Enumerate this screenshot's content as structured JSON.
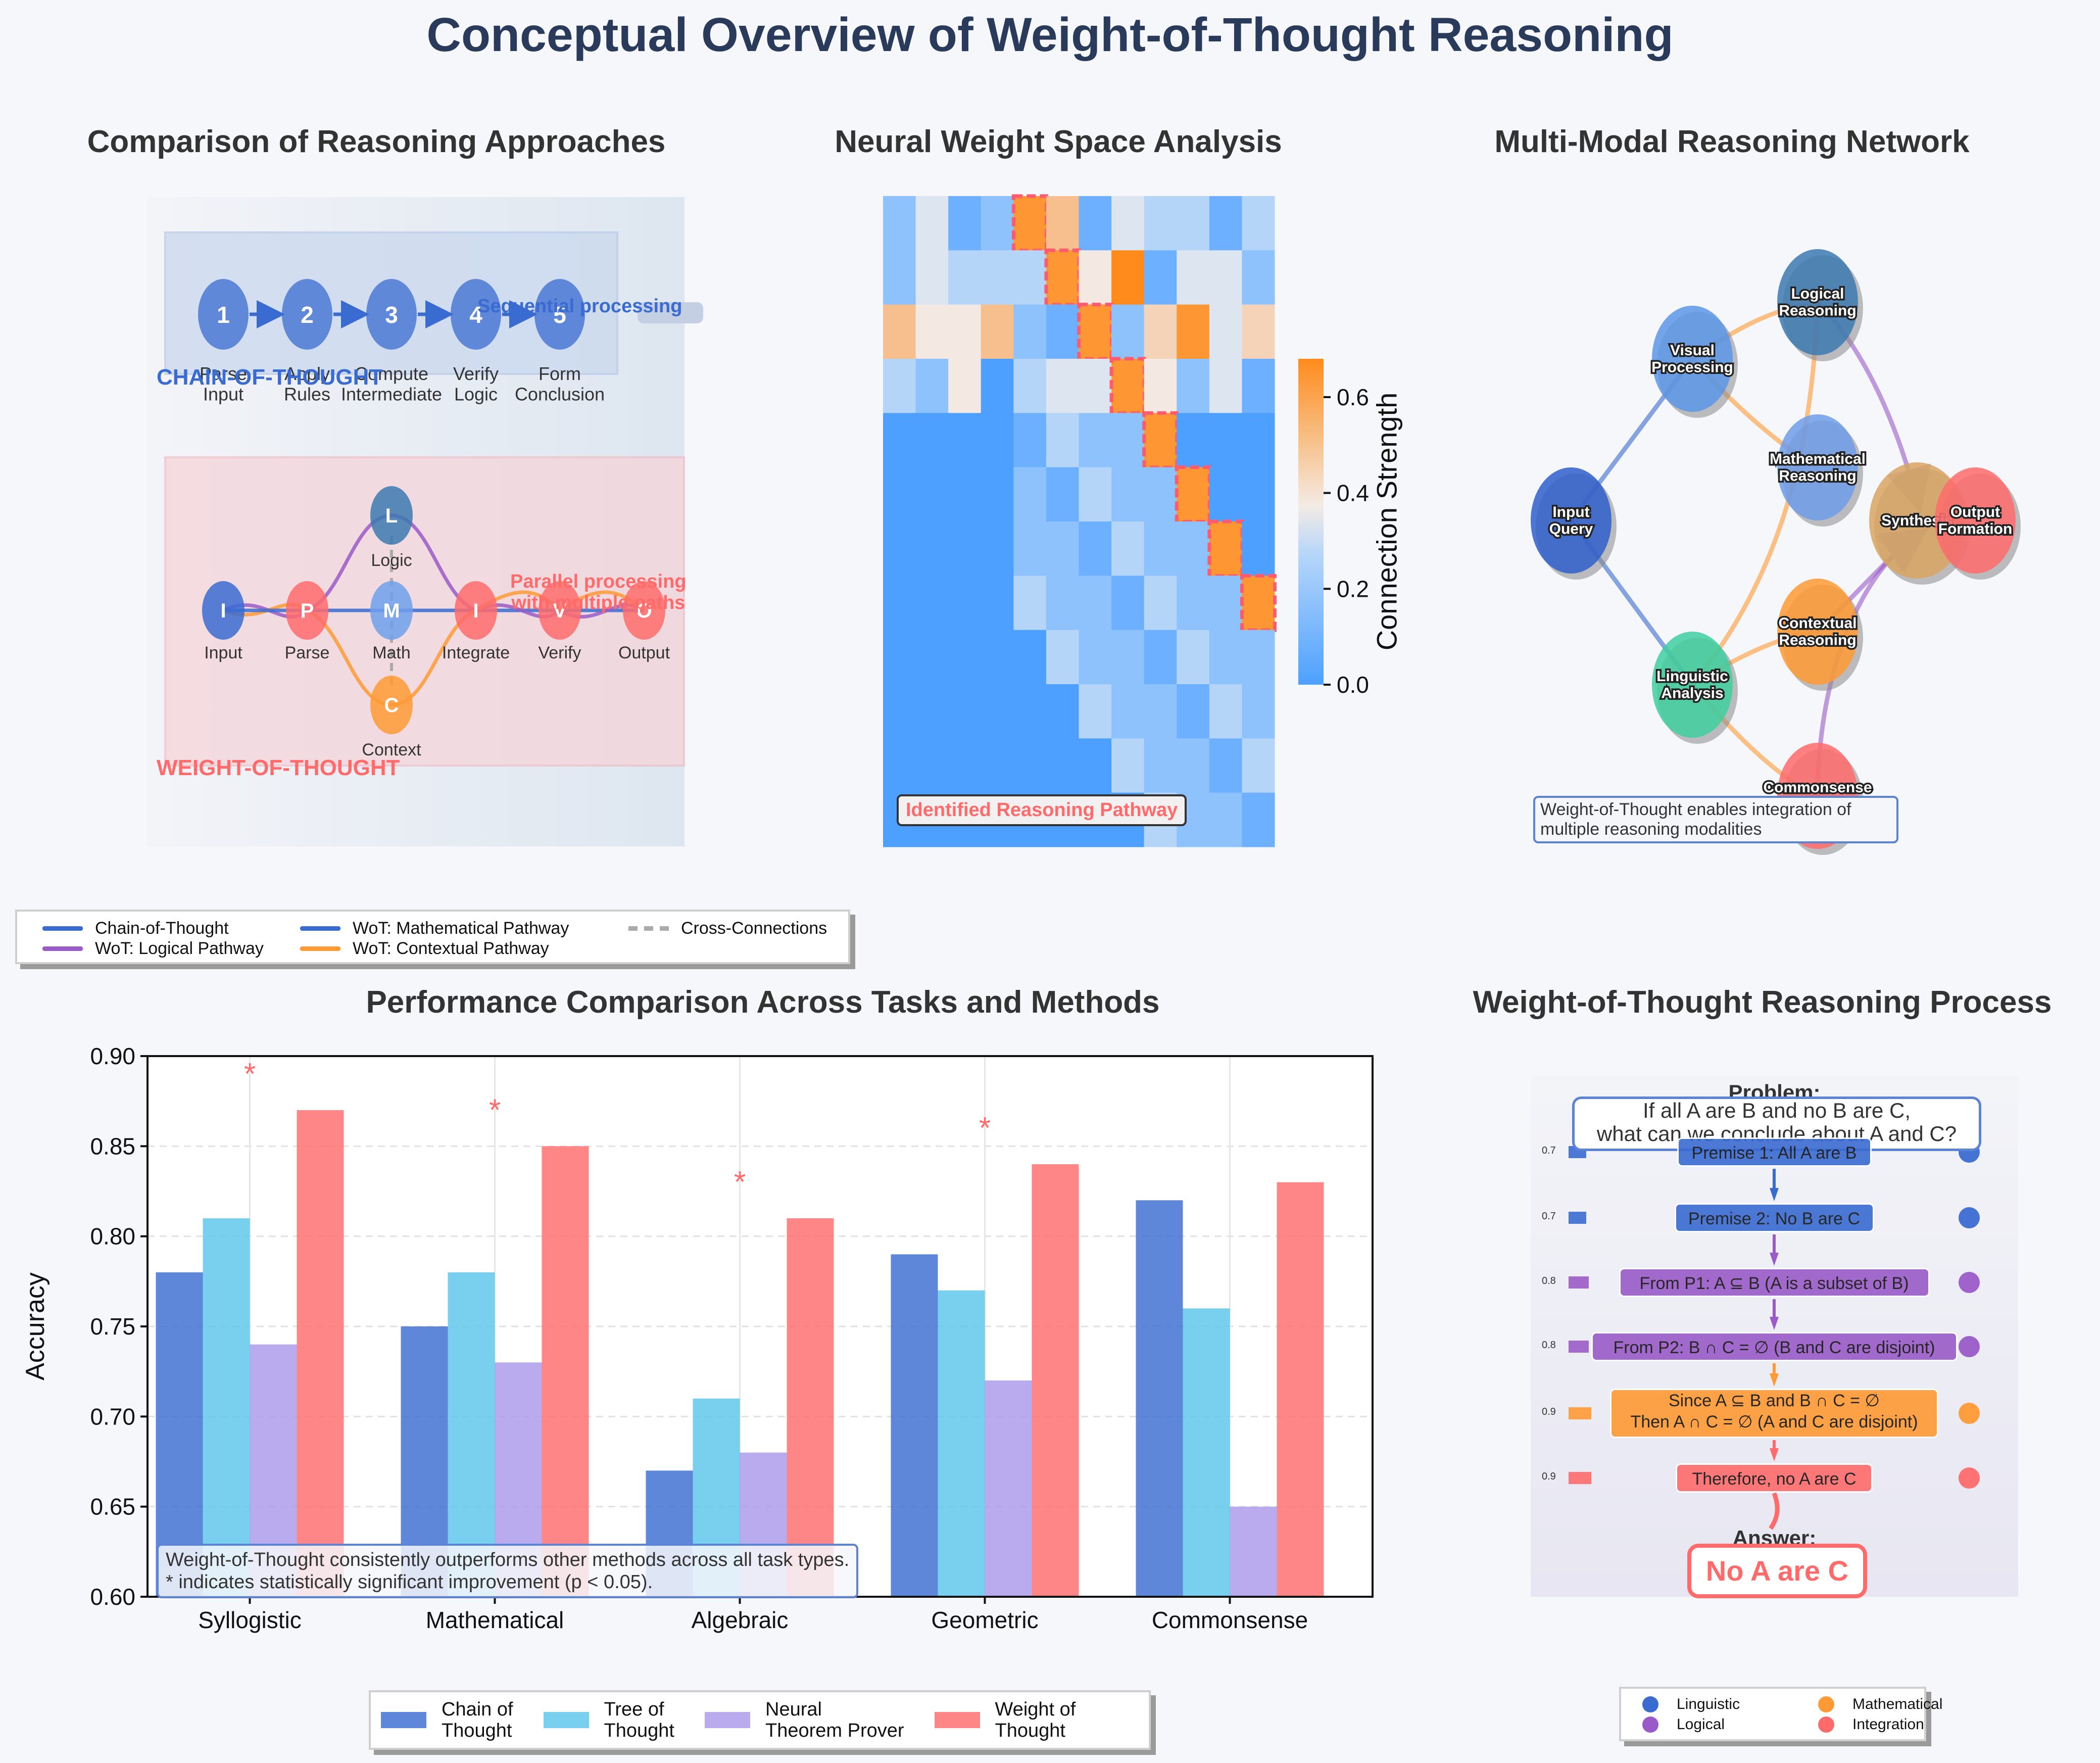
{
  "figure": {
    "title": "Conceptual Overview of Weight-of-Thought Reasoning",
    "colors": {
      "cot": "#3a6bd1",
      "tot": "#5bc4ea",
      "ntp": "#ab98ea",
      "wot": "#ff6b6b",
      "orange": "#ff9a35",
      "purple": "#9a5bc8",
      "bg": "#f5f7fa"
    }
  },
  "panel_a": {
    "title": "Comparison of Reasoning Approaches",
    "cot_label": "CHAIN-OF-THOUGHT",
    "cot_note": "Sequential processing",
    "cot_steps": [
      {
        "n": "1",
        "label": "Parse\nInput"
      },
      {
        "n": "2",
        "label": "Apply\nRules"
      },
      {
        "n": "3",
        "label": "Compute\nIntermediate"
      },
      {
        "n": "4",
        "label": "Verify\nLogic"
      },
      {
        "n": "5",
        "label": "Form\nConclusion"
      }
    ],
    "wot_label": "WEIGHT-OF-THOUGHT",
    "wot_note": "Parallel processing\nwith multiple paths",
    "wot_nodes": [
      {
        "id": "I",
        "label": "Input",
        "color": "#3a6bd1"
      },
      {
        "id": "P",
        "label": "Parse",
        "color": "#ff6b6b"
      },
      {
        "id": "L",
        "label": "Logic",
        "color": "#3c79b0"
      },
      {
        "id": "M",
        "label": "Math",
        "color": "#6ea0ea"
      },
      {
        "id": "C",
        "label": "Context",
        "color": "#ff9a35"
      },
      {
        "id": "I",
        "label": "Integrate",
        "color": "#ff6b6b"
      },
      {
        "id": "V",
        "label": "Verify",
        "color": "#ff6b6b"
      },
      {
        "id": "O",
        "label": "Output",
        "color": "#ff6b6b"
      }
    ],
    "legend": [
      {
        "label": "Chain-of-Thought",
        "color": "#3a6bd1",
        "style": "solid"
      },
      {
        "label": "WoT: Logical Pathway",
        "color": "#9a5bc8",
        "style": "solid"
      },
      {
        "label": "WoT: Mathematical Pathway",
        "color": "#3a6bd1",
        "style": "solid"
      },
      {
        "label": "WoT: Contextual Pathway",
        "color": "#ff9a35",
        "style": "solid"
      },
      {
        "label": "Cross-Connections",
        "color": "#aaaaaa",
        "style": "dashed"
      }
    ]
  },
  "panel_b": {
    "title": "Neural Weight Space Analysis",
    "annotation": "Identified Reasoning Pathway",
    "colorbar_label": "Connection Strength",
    "colorbar_ticks": [
      "0.0",
      "0.2",
      "0.4",
      "0.6"
    ],
    "vmax": 0.68
  },
  "panel_c": {
    "title": "Multi-Modal Reasoning Network",
    "nodes": [
      {
        "key": "input",
        "label": "Input\nQuery",
        "color": "#2f5fcc"
      },
      {
        "key": "visual",
        "label": "Visual\nProcessing",
        "color": "#5b96e6"
      },
      {
        "key": "logical",
        "label": "Logical\nReasoning",
        "color": "#3c79b0"
      },
      {
        "key": "math",
        "label": "Mathematical\nReasoning",
        "color": "#6e9ce8"
      },
      {
        "key": "ling",
        "label": "Linguistic\nAnalysis",
        "color": "#3fcf9f"
      },
      {
        "key": "context",
        "label": "Contextual\nReasoning",
        "color": "#ff9a35"
      },
      {
        "key": "common",
        "label": "Commonsense\nKnowledge",
        "color": "#ff6b6b"
      },
      {
        "key": "synth",
        "label": "Synthesis",
        "color": "#d8a560"
      },
      {
        "key": "output",
        "label": "Output\nFormation",
        "color": "#ff6b6b"
      }
    ],
    "note": "Weight-of-Thought enables integration of\nmultiple reasoning modalities"
  },
  "chart_data": {
    "type": "bar",
    "title": "Performance Comparison Across Tasks and Methods",
    "xlabel": "",
    "ylabel": "Accuracy",
    "ylim": [
      0.6,
      0.9
    ],
    "yticks": [
      "0.60",
      "0.65",
      "0.70",
      "0.75",
      "0.80",
      "0.85",
      "0.90"
    ],
    "categories": [
      "Syllogistic",
      "Mathematical",
      "Algebraic",
      "Geometric",
      "Commonsense"
    ],
    "series": [
      {
        "name": "Chain of\nThought",
        "color": "#3a6bd1",
        "values": [
          0.78,
          0.75,
          0.67,
          0.79,
          0.82
        ]
      },
      {
        "name": "Tree of\nThought",
        "color": "#5bc4ea",
        "values": [
          0.81,
          0.78,
          0.71,
          0.77,
          0.76
        ]
      },
      {
        "name": "Neural\nTheorem Prover",
        "color": "#ab98ea",
        "values": [
          0.74,
          0.73,
          0.68,
          0.72,
          0.65
        ]
      },
      {
        "name": "Weight of\nThought",
        "color": "#ff6b6b",
        "values": [
          0.87,
          0.85,
          0.81,
          0.84,
          0.83
        ]
      }
    ],
    "significant": [
      true,
      true,
      true,
      true,
      false
    ],
    "significance_marker": "*",
    "note": "Weight-of-Thought consistently outperforms other methods across all task types.\n* indicates statistically significant improvement (p < 0.05).",
    "grid": true,
    "legend_position": "bottom"
  },
  "panel_e": {
    "title": "Weight-of-Thought Reasoning Process",
    "problem_label": "Problem:",
    "problem_text": "If all A are B and no B are C,\nwhat can we conclude about A and C?",
    "steps": [
      {
        "text": "Premise 1: All A are B",
        "weight": "0.7",
        "type": "Linguistic",
        "color": "#3a6bd1"
      },
      {
        "text": "Premise 2: No B are C",
        "weight": "0.7",
        "type": "Linguistic",
        "color": "#3a6bd1"
      },
      {
        "text": "From P1: A ⊆ B (A is a subset of B)",
        "weight": "0.8",
        "type": "Logical",
        "color": "#9a5bc8"
      },
      {
        "text": "From P2: B ∩ C = ∅ (B and C are disjoint)",
        "weight": "0.8",
        "type": "Logical",
        "color": "#9a5bc8"
      },
      {
        "text": "Since A ⊆ B and B ∩ C = ∅\nThen A ∩ C = ∅ (A and C are disjoint)",
        "weight": "0.9",
        "type": "Mathematical",
        "color": "#ff9a35"
      },
      {
        "text": "Therefore, no A are C",
        "weight": "0.9",
        "type": "Integration",
        "color": "#ff6b6b"
      }
    ],
    "answer_label": "Answer:",
    "answer_text": "No A are C",
    "legend": [
      {
        "label": "Linguistic",
        "color": "#3a6bd1"
      },
      {
        "label": "Mathematical",
        "color": "#ff9a35"
      },
      {
        "label": "Logical",
        "color": "#9a5bc8"
      },
      {
        "label": "Integration",
        "color": "#ff6b6b"
      }
    ]
  }
}
